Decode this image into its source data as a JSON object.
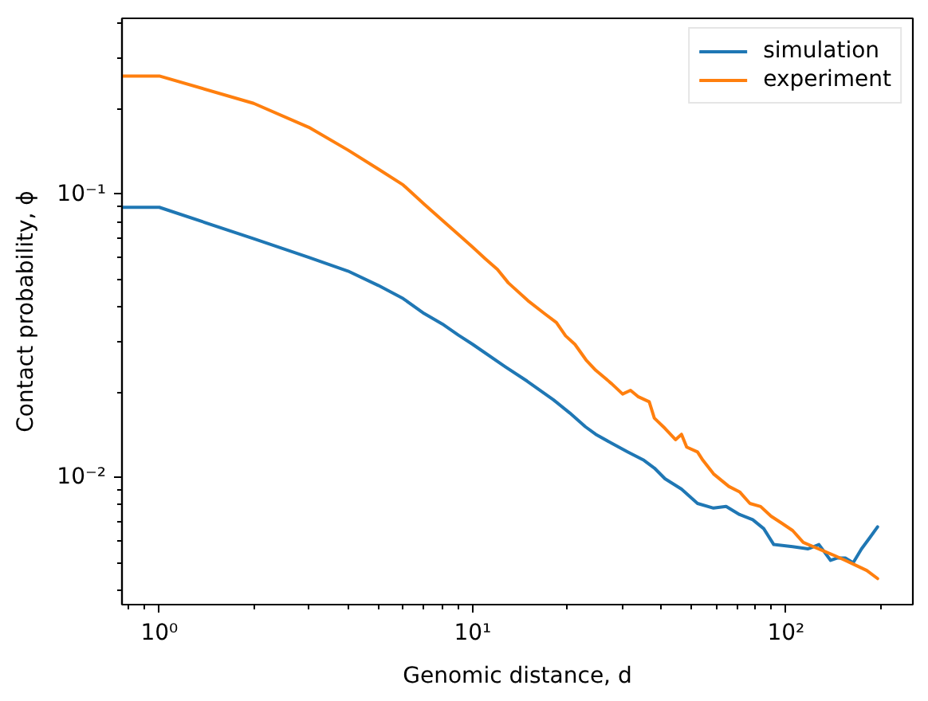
{
  "chart_data": {
    "type": "line",
    "xlabel": "Genomic distance, d",
    "ylabel": "Contact probability, ϕ",
    "log": "xy",
    "grid": false,
    "legend": "top right",
    "xlim": [
      0.76,
      254
    ],
    "ylim": [
      0.00356,
      0.417
    ],
    "xticks": [
      {
        "value": 1,
        "label": "10⁰"
      },
      {
        "value": 10,
        "label": "10¹"
      },
      {
        "value": 100,
        "label": "10²"
      },
      {
        "value": 0.8,
        "label": null
      },
      {
        "value": 0.9,
        "label": null
      },
      {
        "value": 2,
        "label": null
      },
      {
        "value": 3,
        "label": null
      },
      {
        "value": 4,
        "label": null
      },
      {
        "value": 5,
        "label": null
      },
      {
        "value": 6,
        "label": null
      },
      {
        "value": 7,
        "label": null
      },
      {
        "value": 8,
        "label": null
      },
      {
        "value": 9,
        "label": null
      },
      {
        "value": 20,
        "label": null
      },
      {
        "value": 30,
        "label": null
      },
      {
        "value": 40,
        "label": null
      },
      {
        "value": 50,
        "label": null
      },
      {
        "value": 60,
        "label": null
      },
      {
        "value": 70,
        "label": null
      },
      {
        "value": 80,
        "label": null
      },
      {
        "value": 90,
        "label": null
      },
      {
        "value": 200,
        "label": null
      }
    ],
    "yticks": [
      {
        "value": 0.01,
        "label": "10⁻²"
      },
      {
        "value": 0.1,
        "label": "10⁻¹"
      },
      {
        "value": 0.004,
        "label": null
      },
      {
        "value": 0.005,
        "label": null
      },
      {
        "value": 0.006,
        "label": null
      },
      {
        "value": 0.007,
        "label": null
      },
      {
        "value": 0.008,
        "label": null
      },
      {
        "value": 0.009,
        "label": null
      },
      {
        "value": 0.02,
        "label": null
      },
      {
        "value": 0.03,
        "label": null
      },
      {
        "value": 0.04,
        "label": null
      },
      {
        "value": 0.05,
        "label": null
      },
      {
        "value": 0.06,
        "label": null
      },
      {
        "value": 0.07,
        "label": null
      },
      {
        "value": 0.08,
        "label": null
      },
      {
        "value": 0.09,
        "label": null
      },
      {
        "value": 0.2,
        "label": null
      },
      {
        "value": 0.3,
        "label": null
      },
      {
        "value": 0.4,
        "label": null
      }
    ],
    "series": [
      {
        "name": "simulation",
        "color": "#1f77b4",
        "x": [
          0.76,
          1,
          2,
          3,
          4,
          5,
          6,
          7,
          8,
          9,
          10,
          12.7,
          14.9,
          18.1,
          20.4,
          22.9,
          24.7,
          27.8,
          31.3,
          35.2,
          38,
          41.1,
          46.4,
          52.2,
          58.7,
          64.4,
          71.1,
          78.3,
          84.9,
          91.4,
          105,
          117.6,
          127.4,
          138.8,
          146,
          154.6,
          163.8,
          174.2,
          184.5,
          196
        ],
        "values": [
          0.0898,
          0.0898,
          0.0696,
          0.0598,
          0.0535,
          0.0476,
          0.0428,
          0.0379,
          0.0348,
          0.0318,
          0.0295,
          0.0246,
          0.0219,
          0.0188,
          0.0169,
          0.0151,
          0.0142,
          0.0132,
          0.0123,
          0.0115,
          0.0108,
          0.0099,
          0.0091,
          0.0081,
          0.0078,
          0.0079,
          0.0074,
          0.0071,
          0.0066,
          0.0058,
          0.0057,
          0.0056,
          0.0058,
          0.0051,
          0.0052,
          0.0052,
          0.005,
          0.0056,
          0.0061,
          0.0067
        ]
      },
      {
        "name": "experiment",
        "color": "#ff7f0e",
        "x": [
          0.76,
          1,
          2,
          3,
          4,
          5,
          6,
          7,
          8,
          9,
          10,
          11,
          12,
          13,
          15,
          17,
          18.5,
          19.8,
          21.2,
          23,
          24.7,
          27.8,
          30.1,
          31.9,
          33.7,
          36.6,
          38,
          41.1,
          44.4,
          46.4,
          48.2,
          52.2,
          54.3,
          58.7,
          65.7,
          71.1,
          76.7,
          83,
          89.6,
          96.9,
          105,
          113.5,
          122.2,
          132.2,
          143,
          154.6,
          167,
          181,
          196
        ],
        "values": [
          0.261,
          0.261,
          0.209,
          0.172,
          0.143,
          0.1225,
          0.1077,
          0.0922,
          0.0809,
          0.0721,
          0.065,
          0.059,
          0.0542,
          0.0486,
          0.0421,
          0.0378,
          0.0352,
          0.0316,
          0.0295,
          0.026,
          0.0239,
          0.0214,
          0.0197,
          0.0203,
          0.0193,
          0.0185,
          0.0162,
          0.0149,
          0.0136,
          0.0142,
          0.0128,
          0.0123,
          0.0115,
          0.0103,
          0.0093,
          0.0089,
          0.0081,
          0.0079,
          0.0073,
          0.0069,
          0.0065,
          0.0059,
          0.0057,
          0.0055,
          0.0053,
          0.0051,
          0.0049,
          0.0047,
          0.0044
        ]
      }
    ]
  }
}
